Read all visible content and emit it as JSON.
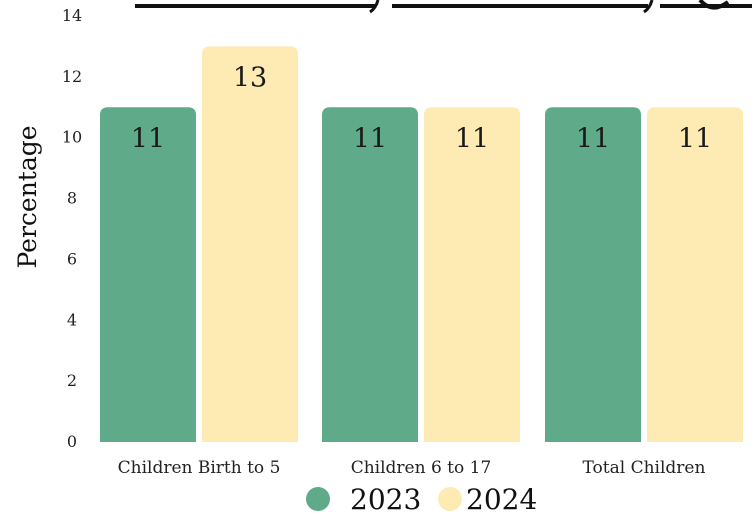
{
  "chart_data": {
    "type": "bar",
    "categories": [
      "Children Birth to 5",
      "Children 6 to 17",
      "Total Children"
    ],
    "series": [
      {
        "name": "2023",
        "values": [
          11,
          11,
          11
        ],
        "color": "#5faa89"
      },
      {
        "name": "2024",
        "values": [
          13,
          11,
          11
        ],
        "color": "#fdebb3"
      }
    ],
    "ylabel": "Percentage",
    "ylim": [
      0,
      14
    ],
    "yticks": [
      0,
      2,
      4,
      6,
      8,
      10,
      12,
      14
    ],
    "grid": false,
    "legend_position": "bottom"
  }
}
